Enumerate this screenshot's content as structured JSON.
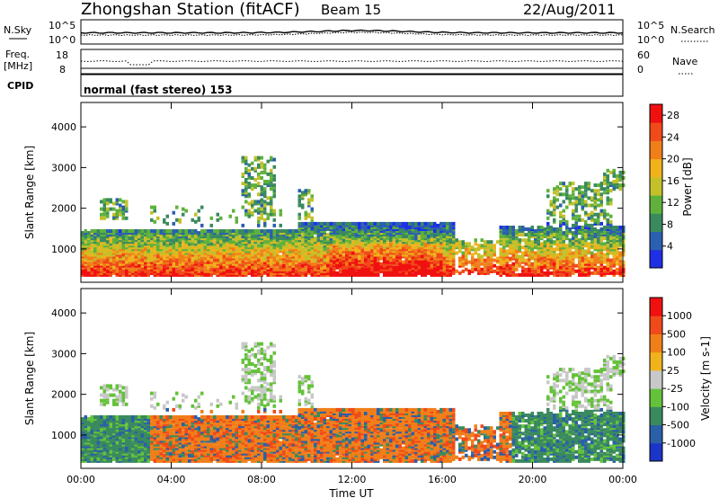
{
  "header": {
    "title": "Zhongshan Station (fitACF)",
    "beam": "Beam 15",
    "date": "22/Aug/2011"
  },
  "strip_panels": {
    "nsky": {
      "left_label_lines": [
        "N.Sky"
      ],
      "left_ticks": [
        "10^5",
        "10^0"
      ],
      "right_ticks": [
        "10^5",
        "10^0"
      ],
      "right_label": "N.Search"
    },
    "freq": {
      "left_label_lines": [
        "Freq.",
        "[MHz]"
      ],
      "left_ticks": [
        "18",
        "8"
      ],
      "right_ticks": [
        "60",
        "0"
      ],
      "right_label": "Nave"
    },
    "cpid": {
      "label": "CPID",
      "text": "normal (fast stereo) 153"
    }
  },
  "chart_data": [
    {
      "type": "heatmap",
      "title": "",
      "ylabel": "Slant Range [km]",
      "xlabel": "",
      "ylim": [
        180,
        4600
      ],
      "yticks": [
        "1000",
        "2000",
        "3000",
        "4000"
      ],
      "colorbar": {
        "label": "Power [dB]",
        "ticks": [
          "4",
          "8",
          "12",
          "16",
          "20",
          "24",
          "28"
        ],
        "range": [
          0,
          30
        ],
        "colors": [
          "#1f2fe6",
          "#2b5fb0",
          "#3a8a5f",
          "#5fb13c",
          "#c4c02a",
          "#f0b21d",
          "#f07f1a",
          "#f04a1a",
          "#f01010"
        ]
      }
    },
    {
      "type": "heatmap",
      "title": "",
      "ylabel": "Slant Range [km]",
      "xlabel": "Time UT",
      "ylim": [
        180,
        4600
      ],
      "yticks": [
        "1000",
        "2000",
        "3000",
        "4000"
      ],
      "xticks": [
        "00:00",
        "04:00",
        "08:00",
        "12:00",
        "16:00",
        "20:00",
        "00:00"
      ],
      "xlim_hours": [
        0,
        24
      ],
      "colorbar": {
        "label": "Velocity [m s-1]",
        "ticks": [
          "1000",
          "500",
          "100",
          "25",
          "-25",
          "-100",
          "-500",
          "-1000"
        ],
        "colors": [
          "#1a35c8",
          "#2b5fa8",
          "#3a8a5f",
          "#64c23a",
          "#c8c8c8",
          "#f0b21d",
          "#f07f1a",
          "#f04a1a",
          "#f01010"
        ]
      }
    }
  ]
}
